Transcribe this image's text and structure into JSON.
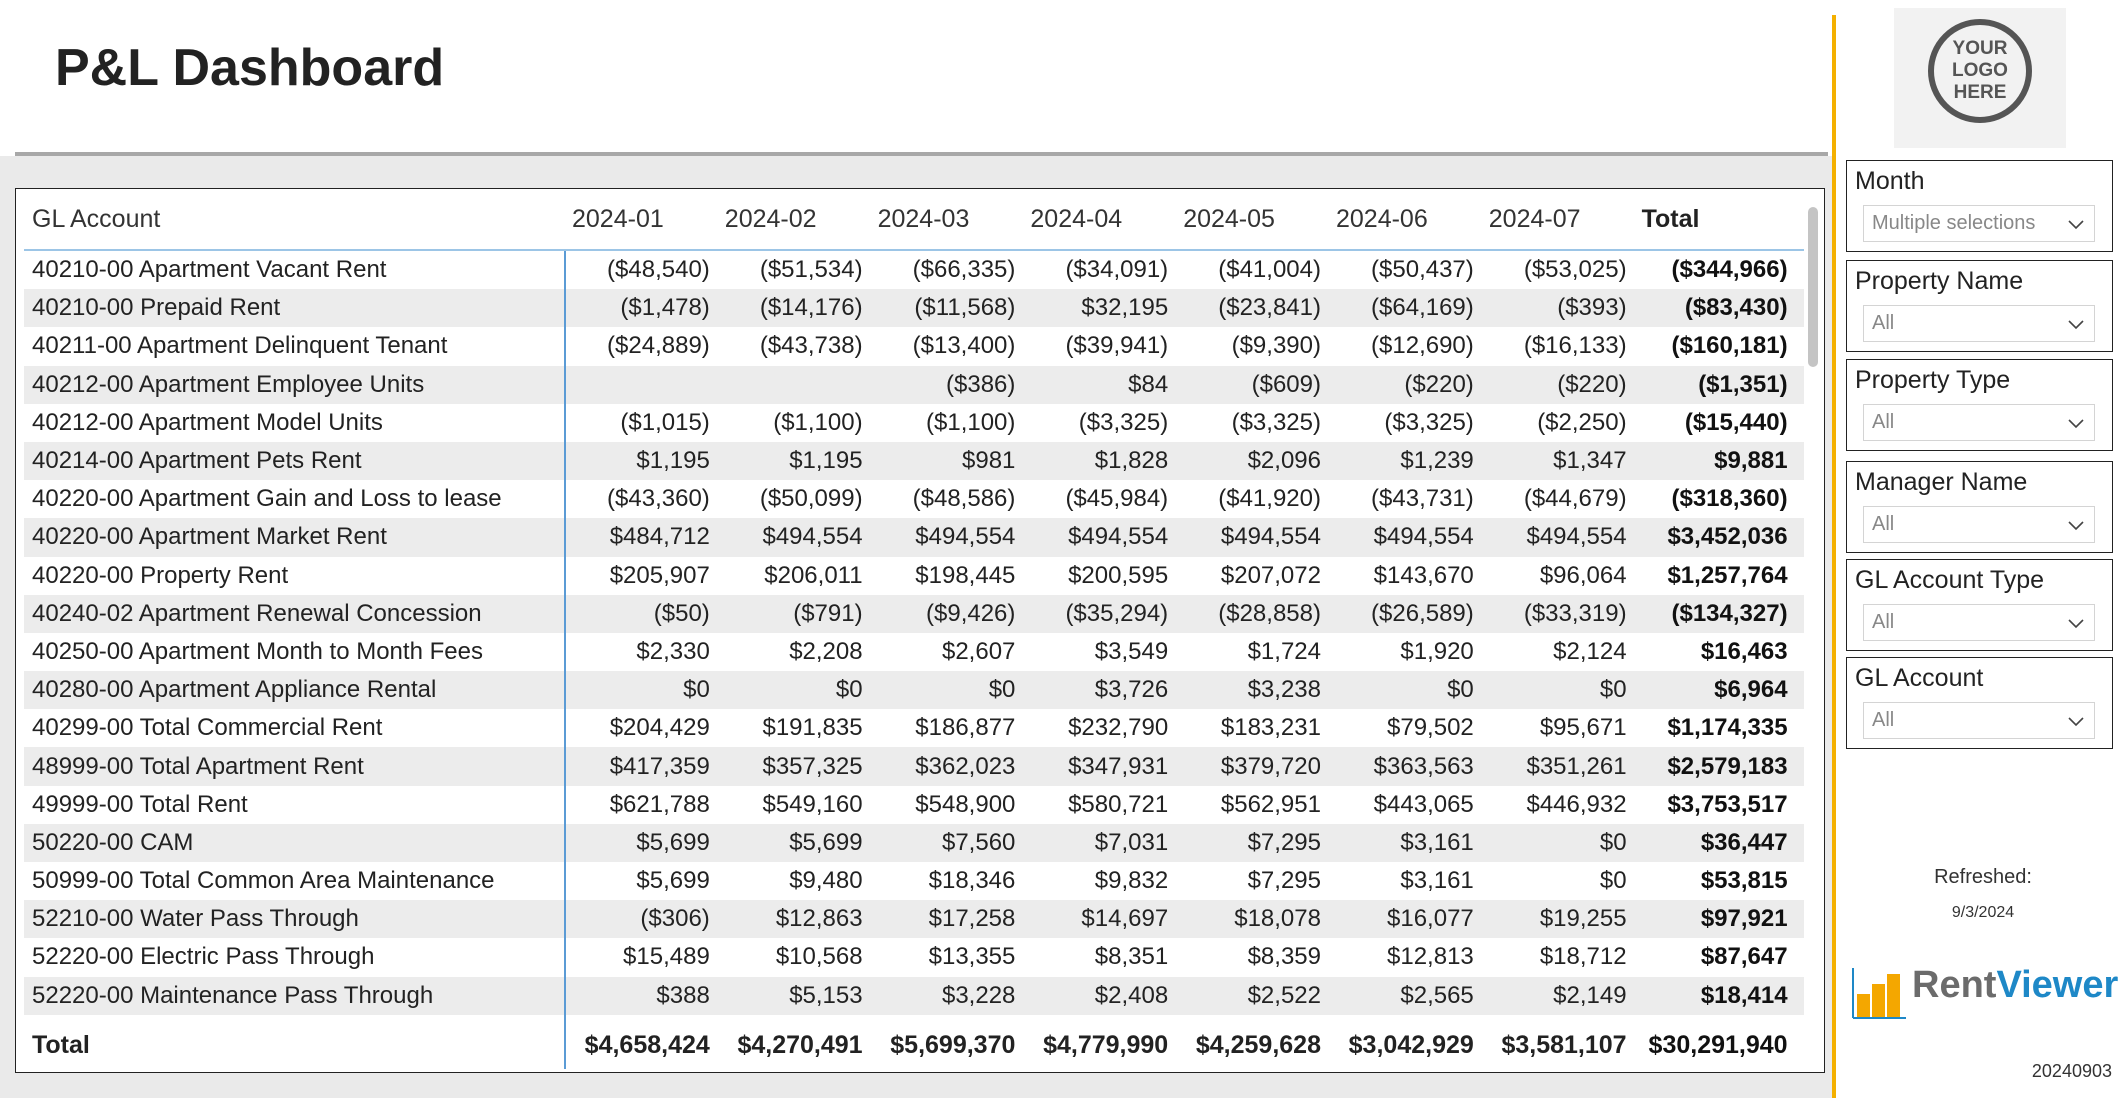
{
  "header": {
    "title": "P&L Dashboard"
  },
  "table": {
    "columns": [
      "GL Account",
      "2024-01",
      "2024-02",
      "2024-03",
      "2024-04",
      "2024-05",
      "2024-06",
      "2024-07",
      "Total"
    ],
    "rows": [
      [
        "40210-00 Apartment Vacant Rent",
        "($48,540)",
        "($51,534)",
        "($66,335)",
        "($34,091)",
        "($41,004)",
        "($50,437)",
        "($53,025)",
        "($344,966)"
      ],
      [
        "40210-00 Prepaid Rent",
        "($1,478)",
        "($14,176)",
        "($11,568)",
        "$32,195",
        "($23,841)",
        "($64,169)",
        "($393)",
        "($83,430)"
      ],
      [
        "40211-00 Apartment Delinquent Tenant",
        "($24,889)",
        "($43,738)",
        "($13,400)",
        "($39,941)",
        "($9,390)",
        "($12,690)",
        "($16,133)",
        "($160,181)"
      ],
      [
        "40212-00 Apartment Employee Units",
        "",
        "",
        "($386)",
        "$84",
        "($609)",
        "($220)",
        "($220)",
        "($1,351)"
      ],
      [
        "40212-00 Apartment Model Units",
        "($1,015)",
        "($1,100)",
        "($1,100)",
        "($3,325)",
        "($3,325)",
        "($3,325)",
        "($2,250)",
        "($15,440)"
      ],
      [
        "40214-00 Apartment Pets Rent",
        "$1,195",
        "$1,195",
        "$981",
        "$1,828",
        "$2,096",
        "$1,239",
        "$1,347",
        "$9,881"
      ],
      [
        "40220-00 Apartment Gain and Loss to lease",
        "($43,360)",
        "($50,099)",
        "($48,586)",
        "($45,984)",
        "($41,920)",
        "($43,731)",
        "($44,679)",
        "($318,360)"
      ],
      [
        "40220-00 Apartment Market Rent",
        "$484,712",
        "$494,554",
        "$494,554",
        "$494,554",
        "$494,554",
        "$494,554",
        "$494,554",
        "$3,452,036"
      ],
      [
        "40220-00 Property Rent",
        "$205,907",
        "$206,011",
        "$198,445",
        "$200,595",
        "$207,072",
        "$143,670",
        "$96,064",
        "$1,257,764"
      ],
      [
        "40240-02 Apartment Renewal Concession",
        "($50)",
        "($791)",
        "($9,426)",
        "($35,294)",
        "($28,858)",
        "($26,589)",
        "($33,319)",
        "($134,327)"
      ],
      [
        "40250-00 Apartment Month to Month Fees",
        "$2,330",
        "$2,208",
        "$2,607",
        "$3,549",
        "$1,724",
        "$1,920",
        "$2,124",
        "$16,463"
      ],
      [
        "40280-00 Apartment Appliance Rental",
        "$0",
        "$0",
        "$0",
        "$3,726",
        "$3,238",
        "$0",
        "$0",
        "$6,964"
      ],
      [
        "40299-00 Total Commercial Rent",
        "$204,429",
        "$191,835",
        "$186,877",
        "$232,790",
        "$183,231",
        "$79,502",
        "$95,671",
        "$1,174,335"
      ],
      [
        "48999-00 Total Apartment Rent",
        "$417,359",
        "$357,325",
        "$362,023",
        "$347,931",
        "$379,720",
        "$363,563",
        "$351,261",
        "$2,579,183"
      ],
      [
        "49999-00 Total Rent",
        "$621,788",
        "$549,160",
        "$548,900",
        "$580,721",
        "$562,951",
        "$443,065",
        "$446,932",
        "$3,753,517"
      ],
      [
        "50220-00 CAM",
        "$5,699",
        "$5,699",
        "$7,560",
        "$7,031",
        "$7,295",
        "$3,161",
        "$0",
        "$36,447"
      ],
      [
        "50999-00 Total Common Area Maintenance",
        "$5,699",
        "$9,480",
        "$18,346",
        "$9,832",
        "$7,295",
        "$3,161",
        "$0",
        "$53,815"
      ],
      [
        "52210-00 Water Pass Through",
        "($306)",
        "$12,863",
        "$17,258",
        "$14,697",
        "$18,078",
        "$16,077",
        "$19,255",
        "$97,921"
      ],
      [
        "52220-00 Electric Pass Through",
        "$15,489",
        "$10,568",
        "$13,355",
        "$8,351",
        "$8,359",
        "$12,813",
        "$18,712",
        "$87,647"
      ],
      [
        "52220-00 Maintenance Pass Through",
        "$388",
        "$5,153",
        "$3,228",
        "$2,408",
        "$2,522",
        "$2,565",
        "$2,149",
        "$18,414"
      ]
    ],
    "total_row": [
      "Total",
      "$4,658,424",
      "$4,270,491",
      "$5,699,370",
      "$4,779,990",
      "$4,259,628",
      "$3,042,929",
      "$3,581,107",
      "$30,291,940"
    ]
  },
  "logo": {
    "lines": [
      "YOUR",
      "LOGO",
      "HERE"
    ]
  },
  "slicers": [
    {
      "label": "Month",
      "value": "Multiple selections"
    },
    {
      "label": "Property Name",
      "value": "All"
    },
    {
      "label": "Property Type",
      "value": "All"
    },
    {
      "label": "Manager Name",
      "value": "All"
    },
    {
      "label": "GL Account Type",
      "value": "All"
    },
    {
      "label": "GL Account",
      "value": "All"
    }
  ],
  "refresh": {
    "label": "Refreshed:",
    "date": "9/3/2024"
  },
  "brand": {
    "rent": "Rent",
    "viewer": "Viewer",
    "rent_color": "#6b6b6b",
    "viewer_color": "#1e88c7",
    "bar_color": "#f4a700"
  },
  "version": "20240903",
  "colors": {
    "accent": "#f4b000",
    "table_divider": "#5b9bd5",
    "header_underline": "#9cc5e6",
    "band": "#ececec"
  }
}
